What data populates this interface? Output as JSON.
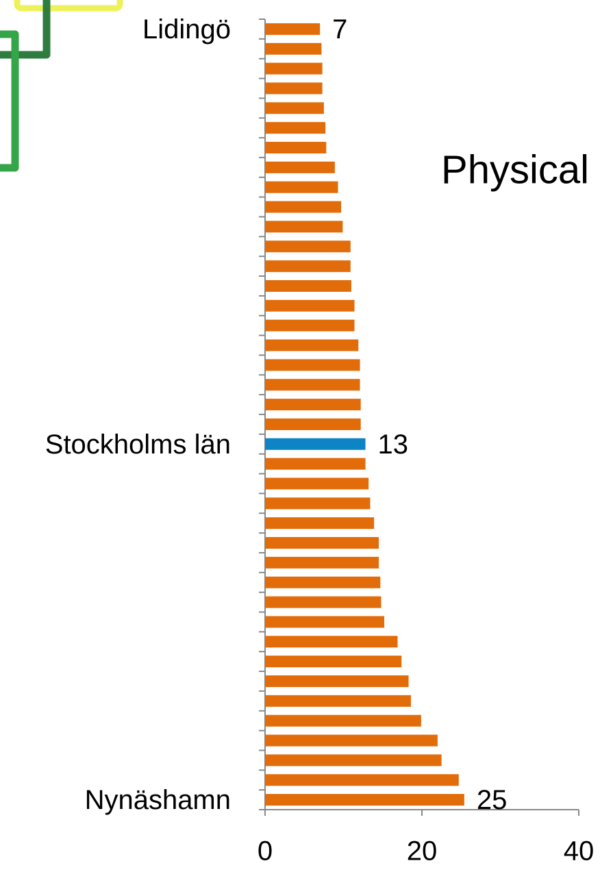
{
  "chart_data": {
    "type": "barh",
    "annotation": "Physical",
    "categories": [
      "Lidingö",
      null,
      null,
      null,
      null,
      null,
      null,
      null,
      null,
      null,
      null,
      null,
      null,
      null,
      null,
      null,
      null,
      null,
      null,
      null,
      null,
      "Stockholms län",
      null,
      null,
      null,
      null,
      null,
      null,
      null,
      null,
      null,
      null,
      null,
      null,
      null,
      null,
      null,
      null,
      null,
      "Nynäshamn"
    ],
    "values": [
      7,
      7.2,
      7.3,
      7.3,
      7.5,
      7.7,
      7.8,
      8.9,
      9.3,
      9.7,
      9.9,
      10.9,
      10.9,
      11.0,
      11.4,
      11.4,
      11.9,
      12.1,
      12.1,
      12.2,
      12.2,
      12.8,
      12.8,
      13.2,
      13.4,
      13.9,
      14.5,
      14.5,
      14.7,
      14.8,
      15.2,
      16.9,
      17.4,
      18.3,
      18.6,
      19.9,
      22.0,
      22.5,
      24.7,
      25.4
    ],
    "value_labels": [
      "7",
      null,
      null,
      null,
      null,
      null,
      null,
      null,
      null,
      null,
      null,
      null,
      null,
      null,
      null,
      null,
      null,
      null,
      null,
      null,
      null,
      "13",
      null,
      null,
      null,
      null,
      null,
      null,
      null,
      null,
      null,
      null,
      null,
      null,
      null,
      null,
      null,
      null,
      null,
      "25"
    ],
    "colors": [
      "#e36c0a",
      "#e36c0a",
      "#e36c0a",
      "#e36c0a",
      "#e36c0a",
      "#e36c0a",
      "#e36c0a",
      "#e36c0a",
      "#e36c0a",
      "#e36c0a",
      "#e36c0a",
      "#e36c0a",
      "#e36c0a",
      "#e36c0a",
      "#e36c0a",
      "#e36c0a",
      "#e36c0a",
      "#e36c0a",
      "#e36c0a",
      "#e36c0a",
      "#e36c0a",
      "#0c84c6",
      "#e36c0a",
      "#e36c0a",
      "#e36c0a",
      "#e36c0a",
      "#e36c0a",
      "#e36c0a",
      "#e36c0a",
      "#e36c0a",
      "#e36c0a",
      "#e36c0a",
      "#e36c0a",
      "#e36c0a",
      "#e36c0a",
      "#e36c0a",
      "#e36c0a",
      "#e36c0a",
      "#e36c0a",
      "#e36c0a"
    ],
    "xlim": [
      0,
      40
    ],
    "xticks": [
      0,
      20,
      40
    ],
    "grid": false
  }
}
